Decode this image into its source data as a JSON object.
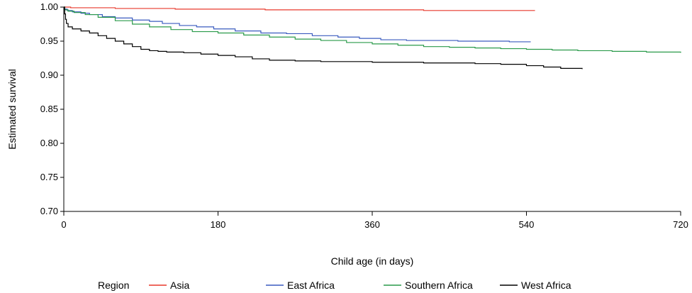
{
  "chart_data": {
    "type": "line",
    "title": "",
    "xlabel": "Child age (in days)",
    "ylabel": "Estimated survival",
    "xlim": [
      0,
      720
    ],
    "ylim": [
      0.7,
      1.0
    ],
    "x_ticks": [
      0,
      180,
      360,
      540,
      720
    ],
    "y_ticks": [
      "0.70",
      "0.75",
      "0.80",
      "0.85",
      "0.90",
      "0.95",
      "1.00"
    ],
    "grid": false,
    "legend": {
      "title": "Region",
      "placement": "bottom"
    },
    "series": [
      {
        "name": "Asia",
        "color": "#e8392c",
        "x": [
          0,
          8,
          60,
          130,
          235,
          330,
          420,
          500,
          550
        ],
        "y": [
          1.0,
          0.999,
          0.998,
          0.997,
          0.996,
          0.996,
          0.995,
          0.995,
          0.995
        ]
      },
      {
        "name": "East Africa",
        "color": "#3a5bbf",
        "x": [
          0,
          1,
          4,
          10,
          20,
          30,
          45,
          60,
          80,
          100,
          115,
          135,
          155,
          175,
          200,
          230,
          260,
          290,
          320,
          345,
          370,
          400,
          430,
          460,
          490,
          520,
          545
        ],
        "y": [
          1.0,
          0.997,
          0.995,
          0.993,
          0.991,
          0.989,
          0.986,
          0.984,
          0.981,
          0.979,
          0.976,
          0.973,
          0.971,
          0.968,
          0.965,
          0.962,
          0.961,
          0.958,
          0.956,
          0.954,
          0.952,
          0.951,
          0.951,
          0.95,
          0.95,
          0.949,
          0.949
        ]
      },
      {
        "name": "Southern Africa",
        "color": "#2a9a4a",
        "x": [
          0,
          1,
          5,
          12,
          25,
          40,
          60,
          80,
          100,
          125,
          150,
          180,
          210,
          240,
          270,
          300,
          330,
          360,
          390,
          420,
          450,
          480,
          510,
          540,
          570,
          600,
          640,
          680,
          720
        ],
        "y": [
          1.0,
          0.996,
          0.994,
          0.992,
          0.989,
          0.985,
          0.98,
          0.975,
          0.971,
          0.967,
          0.964,
          0.962,
          0.959,
          0.956,
          0.953,
          0.951,
          0.948,
          0.946,
          0.944,
          0.942,
          0.941,
          0.94,
          0.939,
          0.938,
          0.937,
          0.936,
          0.935,
          0.934,
          0.933
        ]
      },
      {
        "name": "West Africa",
        "color": "#000000",
        "x": [
          0,
          1,
          2,
          3,
          5,
          10,
          20,
          30,
          40,
          50,
          60,
          70,
          80,
          90,
          100,
          110,
          120,
          140,
          160,
          180,
          200,
          220,
          240,
          270,
          300,
          330,
          360,
          390,
          420,
          450,
          480,
          510,
          540,
          560,
          580,
          605
        ],
        "y": [
          1.0,
          0.99,
          0.982,
          0.976,
          0.971,
          0.968,
          0.965,
          0.962,
          0.958,
          0.954,
          0.95,
          0.946,
          0.942,
          0.938,
          0.936,
          0.935,
          0.934,
          0.933,
          0.931,
          0.929,
          0.927,
          0.924,
          0.922,
          0.921,
          0.92,
          0.92,
          0.919,
          0.919,
          0.918,
          0.918,
          0.917,
          0.916,
          0.914,
          0.912,
          0.91,
          0.909
        ]
      }
    ]
  }
}
